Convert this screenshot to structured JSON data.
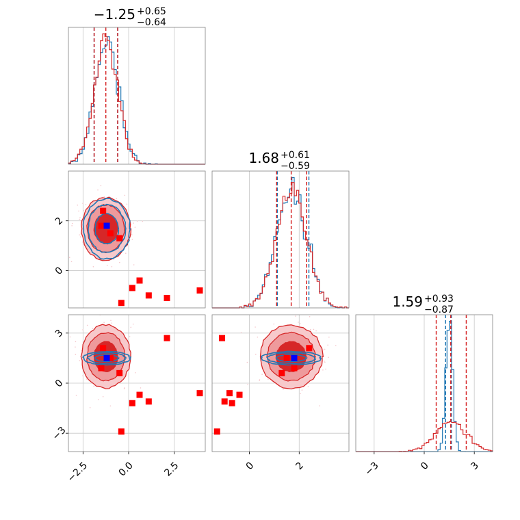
{
  "chart_data": {
    "type": "scatter",
    "parameters": 3,
    "colors": {
      "series_a": "#d62728",
      "series_b": "#1f77b4",
      "markers_red": "#ff0000",
      "marker_blue": "#0000ff"
    },
    "titles": [
      {
        "median": "−1.25",
        "plus": "+0.65",
        "minus": "−0.64"
      },
      {
        "median": "1.68",
        "plus": "+0.61",
        "minus": "−0.59"
      },
      {
        "median": "1.59",
        "plus": "+0.93",
        "minus": "−0.87"
      }
    ],
    "ranges": [
      [
        -3.3,
        4.2
      ],
      [
        -1.5,
        4.0
      ],
      [
        -4.1,
        4.1
      ]
    ],
    "ticks": {
      "p0": {
        "values": [
          -2.5,
          0.0,
          2.5
        ],
        "labels": [
          "−2.5",
          "0.0",
          "2.5"
        ]
      },
      "p1_x": {
        "values": [
          0,
          2
        ],
        "labels": [
          "0",
          "2"
        ]
      },
      "p1_y": {
        "values": [
          0,
          2
        ],
        "labels": [
          "0",
          "2"
        ]
      },
      "p2": {
        "values": [
          -3,
          0,
          3
        ],
        "labels": [
          "−3",
          "0",
          "3"
        ]
      }
    },
    "grid": true,
    "quantiles": {
      "series_a": [
        [
          -1.89,
          -1.25,
          -0.6
        ],
        [
          1.09,
          1.68,
          2.29
        ],
        [
          0.72,
          1.59,
          2.52
        ]
      ],
      "series_b": [
        [
          -1.89,
          -0.6
        ],
        [
          1.12,
          2.39
        ],
        [
          1.28,
          1.63
        ]
      ]
    },
    "centers": {
      "series_a": [
        -1.25,
        1.68,
        1.59
      ],
      "series_b": [
        -1.2,
        1.68,
        1.5
      ]
    },
    "spreads": {
      "series_a": [
        0.64,
        0.6,
        0.9
      ],
      "series_b": [
        0.64,
        0.6,
        0.2
      ]
    },
    "truth": [
      -1.2,
      1.8,
      1.5
    ],
    "red_points": [
      [
        -1.4,
        2.4,
        2.1
      ],
      [
        -1.0,
        1.5,
        1.5
      ],
      [
        -0.5,
        1.3,
        0.6
      ],
      [
        0.2,
        -0.7,
        -1.2
      ],
      [
        0.6,
        -0.4,
        -0.7
      ],
      [
        1.1,
        -1.0,
        -1.1
      ],
      [
        2.1,
        -1.1,
        2.7
      ],
      [
        3.9,
        -0.8,
        -0.6
      ],
      [
        -1.5,
        1.8,
        0.9
      ],
      [
        -0.4,
        -1.3,
        -2.9
      ]
    ]
  }
}
